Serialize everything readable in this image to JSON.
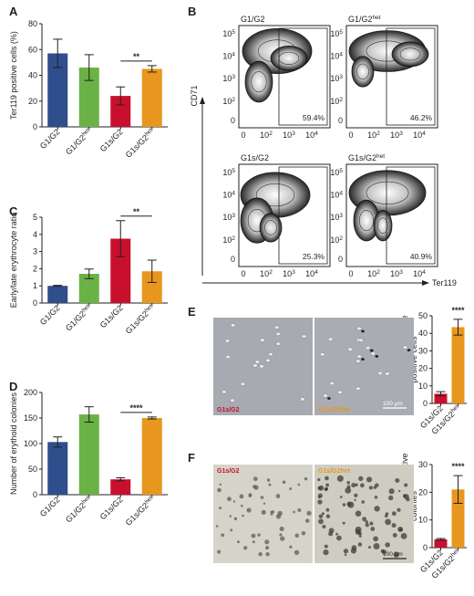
{
  "colors": {
    "blue": "#2f4e8b",
    "green": "#6ab245",
    "red": "#c8102e",
    "orange": "#e8971e",
    "dark": "#231f20"
  },
  "chart_data": [
    {
      "panel": "A",
      "type": "bar",
      "categories": [
        "G1/G2",
        "G1/G2het",
        "G1s/G2",
        "G1s/G2het"
      ],
      "category_labels": [
        {
          "base": "G1/G2",
          "sup": ""
        },
        {
          "base": "G1/G2",
          "sup": "het"
        },
        {
          "base": "G1s/G2",
          "sup": ""
        },
        {
          "base": "G1s/G2",
          "sup": "het"
        }
      ],
      "values": [
        57,
        46,
        24,
        45
      ],
      "errors": [
        11,
        10,
        7,
        2.5
      ],
      "colors": [
        "#2f4e8b",
        "#6ab245",
        "#c8102e",
        "#e8971e"
      ],
      "ylabel": "Ter119 positive cells (%)",
      "ylim": [
        0,
        80
      ],
      "yticks": [
        "0",
        "20",
        "40",
        "60",
        "80"
      ],
      "significance": [
        {
          "from": 2,
          "to": 3,
          "label": "**"
        }
      ]
    },
    {
      "panel": "C",
      "type": "bar",
      "categories": [
        "G1/G2",
        "G1/G2het",
        "G1s/G2",
        "G1s/G2het"
      ],
      "category_labels": [
        {
          "base": "G1/G2",
          "sup": ""
        },
        {
          "base": "G1/G2",
          "sup": "het"
        },
        {
          "base": "G1s/G2",
          "sup": ""
        },
        {
          "base": "G1s/G2",
          "sup": "het"
        }
      ],
      "values": [
        1.0,
        1.7,
        3.75,
        1.85
      ],
      "errors": [
        0.03,
        0.28,
        1.05,
        0.65
      ],
      "colors": [
        "#2f4e8b",
        "#6ab245",
        "#c8102e",
        "#e8971e"
      ],
      "ylabel": "Early/late erythrocyte ratio",
      "ylim": [
        0,
        5
      ],
      "yticks": [
        "0",
        "1",
        "2",
        "3",
        "4",
        "5"
      ],
      "significance": [
        {
          "from": 2,
          "to": 3,
          "label": "**"
        }
      ]
    },
    {
      "panel": "D",
      "type": "bar",
      "categories": [
        "G1/G2",
        "G1/G2het",
        "G1s/G2",
        "G1s/G2het"
      ],
      "category_labels": [
        {
          "base": "G1/G2",
          "sup": ""
        },
        {
          "base": "G1/G2",
          "sup": "het"
        },
        {
          "base": "G1s/G2",
          "sup": ""
        },
        {
          "base": "G1s/G2",
          "sup": "het"
        }
      ],
      "values": [
        103,
        157,
        30,
        150
      ],
      "errors": [
        10,
        15,
        3,
        2
      ],
      "colors": [
        "#2f4e8b",
        "#6ab245",
        "#c8102e",
        "#e8971e"
      ],
      "ylabel": "Number of erythoid colonies",
      "ylim": [
        0,
        200
      ],
      "yticks": [
        "0",
        "50",
        "100",
        "150",
        "200"
      ],
      "significance": [
        {
          "from": 2,
          "to": 3,
          "label": "****"
        }
      ]
    },
    {
      "panel": "E",
      "type": "bar",
      "categories": [
        "G1s/G2",
        "G1s/G2het"
      ],
      "category_labels": [
        {
          "base": "G1s/G2",
          "sup": ""
        },
        {
          "base": "G1s/G2",
          "sup": "het"
        }
      ],
      "values": [
        5.5,
        43.5
      ],
      "errors": [
        1.2,
        4.5
      ],
      "colors": [
        "#c8102e",
        "#e8971e"
      ],
      "ylabel": "Percentage of benzidine positive cells",
      "ylim": [
        0,
        50
      ],
      "yticks": [
        "0",
        "10",
        "20",
        "30",
        "40",
        "50"
      ],
      "significance": [
        {
          "from": 0,
          "to": 1,
          "label": "****",
          "above": 1
        }
      ]
    },
    {
      "panel": "F",
      "type": "bar",
      "categories": [
        "G1s/G2",
        "G1s/G2het"
      ],
      "category_labels": [
        {
          "base": "G1s/G2",
          "sup": ""
        },
        {
          "base": "G1s/G2",
          "sup": "het"
        }
      ],
      "values": [
        3,
        21
      ],
      "errors": [
        0.3,
        5
      ],
      "colors": [
        "#c8102e",
        "#e8971e"
      ],
      "ylabel": "Number of benzidine positive colonies",
      "ylim": [
        0,
        30
      ],
      "yticks": [
        "0",
        "10",
        "20",
        "30"
      ],
      "significance": [
        {
          "from": 0,
          "to": 1,
          "label": "****",
          "above": 1
        }
      ]
    }
  ],
  "flow": {
    "panel": "B",
    "ylabel": "CD71",
    "xlabel": "Ter119",
    "x_ticks": [
      {
        "base": "0",
        "exp": ""
      },
      {
        "base": "10",
        "exp": "2"
      },
      {
        "base": "10",
        "exp": "3"
      },
      {
        "base": "10",
        "exp": "4"
      }
    ],
    "y_ticks": [
      {
        "base": "10",
        "exp": "5"
      },
      {
        "base": "10",
        "exp": "4"
      },
      {
        "base": "10",
        "exp": "3"
      },
      {
        "base": "10",
        "exp": "2"
      },
      {
        "base": "0",
        "exp": ""
      }
    ],
    "plots": [
      {
        "title": "G1/G2",
        "sup": "",
        "gate_pct": "59.4%"
      },
      {
        "title": "G1/G2",
        "sup": "het",
        "gate_pct": "46.2%"
      },
      {
        "title": "G1s/G2",
        "sup": "",
        "gate_pct": "25.3%"
      },
      {
        "title": "G1s/G2",
        "sup": "het",
        "gate_pct": "40.9%"
      }
    ]
  },
  "micrographs": {
    "E": {
      "left_label": "G1s/G2",
      "right_label": "G1s/G2het",
      "scale": "100 µm"
    },
    "F": {
      "left_label": "G1s/G2",
      "right_label": "G1s/G2het",
      "scale": "100 µm"
    }
  },
  "panel_letters": [
    "A",
    "B",
    "C",
    "D",
    "E",
    "F"
  ]
}
